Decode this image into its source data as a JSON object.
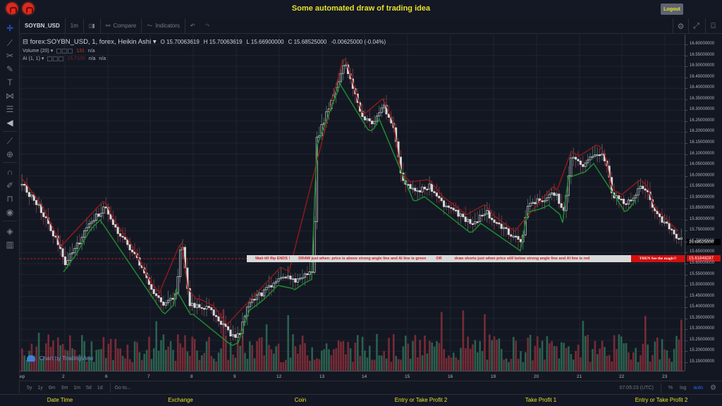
{
  "header": {
    "title": "Some automated draw of trading idea",
    "logout_label": "Logout",
    "logos": [
      "logo-1",
      "logo-2"
    ]
  },
  "toolbar": {
    "symbol": "SOYBN_USD",
    "interval": "1m",
    "chart_type_icon": "candles-icon",
    "compare_label": "Compare",
    "indicators_label": "Indicators",
    "undo_icon": "undo-icon",
    "redo_icon": "redo-icon",
    "right_icons": [
      "gear-icon",
      "fullscreen-icon",
      "camera-icon"
    ]
  },
  "left_tools": [
    "crosshair-icon",
    "trend-line-icon",
    "fib-icon",
    "brush-icon",
    "text-icon",
    "pattern-icon",
    "prediction-icon",
    "back-arrow-icon",
    "ruler-icon",
    "zoom-in-icon",
    "magnet-icon",
    "lock-drawing-icon",
    "unlock-icon",
    "eye-icon",
    "layers-icon",
    "trash-icon"
  ],
  "legend": {
    "series": "forex:SOYBN_USD, 1, forex, Heikin Ashi",
    "open": "O 15.70063619",
    "high": "H 15.70063619",
    "low": "L 15.66900000",
    "close": "C 15.68525000",
    "change": "-0.00625000 (-0.04%)",
    "volume_label": "Volume (20)",
    "volume_value": "131",
    "volume_extra": "n/a",
    "ai_label": "AI (1, 1)",
    "ai_value": "15.7100",
    "ai_extra1": "n/a",
    "ai_extra2": "n/a"
  },
  "banner": {
    "text1": "Wait till flip ENDS !",
    "text2": "DRAW just when: price is above strong angle line and AI line is green",
    "text3": "OR",
    "text4": "draw shorts just when price still below strong angle line and AI line is red",
    "magic": "THEN See the magic!!"
  },
  "watermark": "Chart by TradingView",
  "price_axis": {
    "labels": [
      "16.60000000",
      "16.55000000",
      "16.50000000",
      "16.45000000",
      "16.40000000",
      "16.35000000",
      "16.30000000",
      "16.25000000",
      "16.20000000",
      "16.15000000",
      "16.10000000",
      "16.05000000",
      "16.00000000",
      "15.95000000",
      "15.90000000",
      "15.85000000",
      "15.80000000",
      "15.75000000",
      "15.70000000",
      "15.65000000",
      "15.60000000",
      "15.55000000",
      "15.50000000",
      "15.45000000",
      "15.40000000",
      "15.35000000",
      "15.30000000",
      "15.25000000",
      "15.20000000",
      "15.15000000"
    ],
    "current_price": "15.68525000",
    "line_price": "15.61848287",
    "line_color": "#d10f0f"
  },
  "time_axis": {
    "labels": [
      "ep",
      "2",
      "6",
      "7",
      "8",
      "9",
      "12",
      "13",
      "14",
      "15",
      "16",
      "19",
      "20",
      "21",
      "22",
      "23"
    ]
  },
  "bottom_bar": {
    "ranges": [
      "5y",
      "1y",
      "6m",
      "3m",
      "1m",
      "5d",
      "1d"
    ],
    "goto": "Go to...",
    "clock": "07:05:23 (UTC)",
    "percent": "%",
    "log": "log",
    "auto": "auto"
  },
  "footer": {
    "labels": [
      "Date Time",
      "Exchange",
      "Coin",
      "Entry or Take Profit 2",
      "Take Profit 1",
      "Entry or Take Profit 2"
    ]
  },
  "colors": {
    "accent_yellow": "#e8e02a",
    "bull_line": "#1e8a2e",
    "bear_line": "#8b1a1a",
    "vol_up": "#2f6e57",
    "vol_down": "#8a2f3a"
  }
}
